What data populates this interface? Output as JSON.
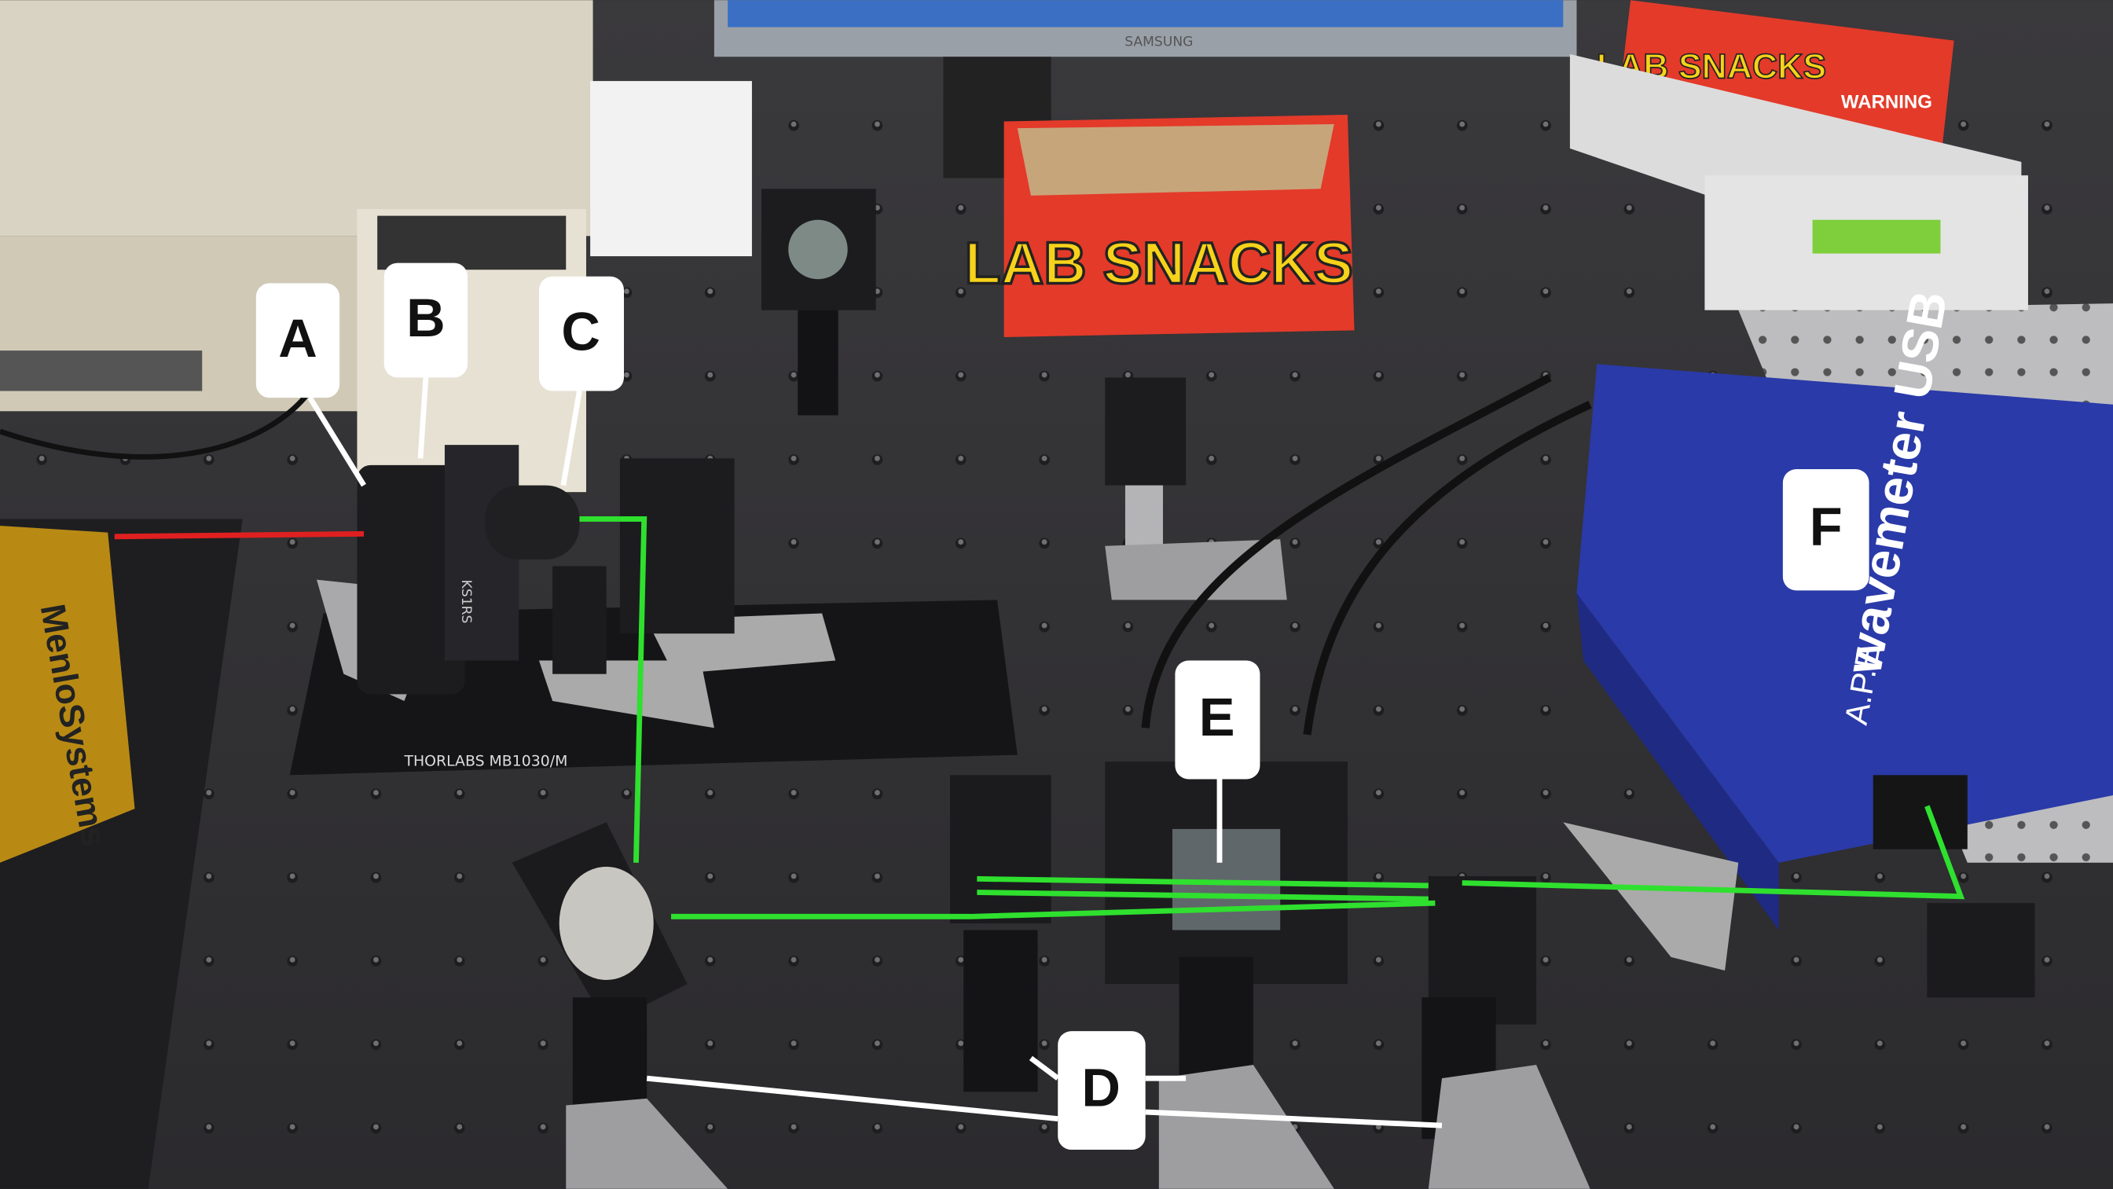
{
  "labels": [
    "A",
    "B",
    "C",
    "D",
    "E",
    "F"
  ],
  "printed_text": {
    "monitor": "SAMSUNG",
    "snack_box": "LAB SNACKS",
    "snack_box_top": "LAB SNACKS",
    "breadboard": "THORLABS MB1030/M",
    "mount": "KS1RS",
    "wavemeter": "wavemeter USB",
    "wavemeter_brand": "A.P.E",
    "laser": "MenloSystems",
    "warning": "WARNING"
  }
}
